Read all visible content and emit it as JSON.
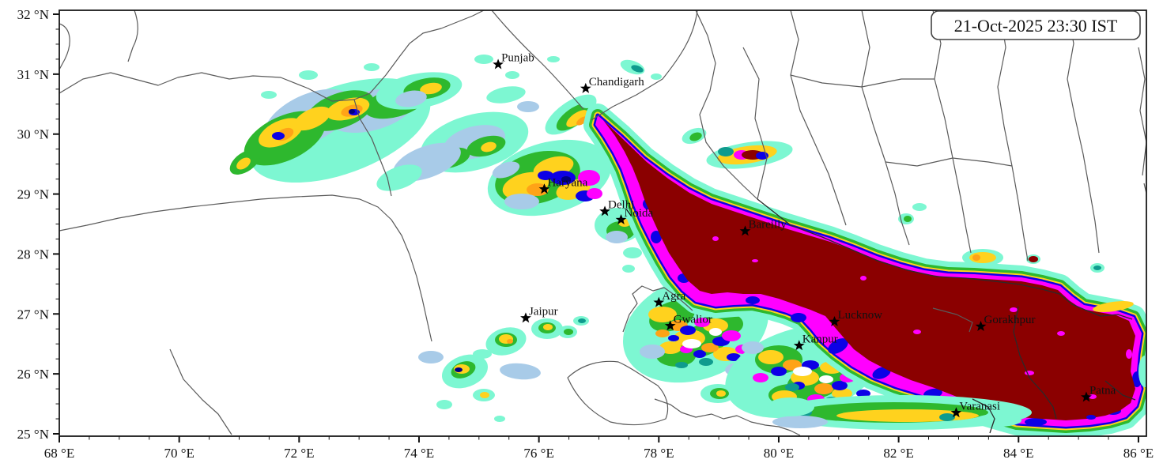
{
  "header": {
    "timestamp": "21-Oct-2025 23:30 IST"
  },
  "axes": {
    "x": {
      "min": 68,
      "max": 86,
      "major_step": 2,
      "minor_step": 0.5,
      "unit": "°E",
      "ticks": [
        {
          "value": 68,
          "label": "68 °E"
        },
        {
          "value": 70,
          "label": "70 °E"
        },
        {
          "value": 72,
          "label": "72 °E"
        },
        {
          "value": 74,
          "label": "74 °E"
        },
        {
          "value": 76,
          "label": "76 °E"
        },
        {
          "value": 78,
          "label": "78 °E"
        },
        {
          "value": 80,
          "label": "80 °E"
        },
        {
          "value": 82,
          "label": "82 °E"
        },
        {
          "value": 84,
          "label": "84 °E"
        },
        {
          "value": 86,
          "label": "86 °E"
        }
      ]
    },
    "y": {
      "min": 25,
      "max": 32,
      "major_step": 1,
      "minor_step": 0.25,
      "unit": "°N",
      "ticks": [
        {
          "value": 25,
          "label": "25 °N"
        },
        {
          "value": 26,
          "label": "26 °N"
        },
        {
          "value": 27,
          "label": "27 °N"
        },
        {
          "value": 28,
          "label": "28 °N"
        },
        {
          "value": 29,
          "label": "29 °N"
        },
        {
          "value": 30,
          "label": "30 °N"
        },
        {
          "value": 31,
          "label": "31 °N"
        },
        {
          "value": 32,
          "label": "32 °N"
        }
      ]
    }
  },
  "cities": [
    {
      "name": "Punjab",
      "lon": 75.32,
      "lat": 31.16
    },
    {
      "name": "Chandigarh",
      "lon": 76.78,
      "lat": 30.76
    },
    {
      "name": "Haryana",
      "lon": 76.09,
      "lat": 29.08
    },
    {
      "name": "Delhi",
      "lon": 77.1,
      "lat": 28.71
    },
    {
      "name": "Noida",
      "lon": 77.37,
      "lat": 28.57
    },
    {
      "name": "Bareilly",
      "lon": 79.44,
      "lat": 28.38
    },
    {
      "name": "Jaipur",
      "lon": 75.78,
      "lat": 26.93
    },
    {
      "name": "Agra",
      "lon": 78.0,
      "lat": 27.19
    },
    {
      "name": "Gwalior",
      "lon": 78.19,
      "lat": 26.8
    },
    {
      "name": "Lucknow",
      "lon": 80.93,
      "lat": 26.87
    },
    {
      "name": "Kanpur",
      "lon": 80.34,
      "lat": 26.47
    },
    {
      "name": "Gorakhpur",
      "lon": 83.37,
      "lat": 26.79
    },
    {
      "name": "Patna",
      "lon": 85.13,
      "lat": 25.61
    },
    {
      "name": "Varanasi",
      "lon": 82.96,
      "lat": 25.35
    }
  ],
  "colormap": {
    "description": "intensity shading, low to high",
    "levels": [
      {
        "name": "aquamarine",
        "hex": "#7df7d2"
      },
      {
        "name": "light-blue",
        "hex": "#a8cbe8"
      },
      {
        "name": "teal",
        "hex": "#0f9b8e"
      },
      {
        "name": "green",
        "hex": "#2eb82e"
      },
      {
        "name": "gold",
        "hex": "#ffd21e"
      },
      {
        "name": "orange",
        "hex": "#ffa317"
      },
      {
        "name": "blue",
        "hex": "#0d00e6"
      },
      {
        "name": "navy",
        "hex": "#00007f"
      },
      {
        "name": "magenta",
        "hex": "#ff00ff"
      },
      {
        "name": "dark-red",
        "hex": "#8b0000"
      }
    ]
  },
  "style_colors": {
    "border_line": "#5a5a5a",
    "border_line_dark": "#2a2a2a",
    "axis_text": "#111111"
  }
}
